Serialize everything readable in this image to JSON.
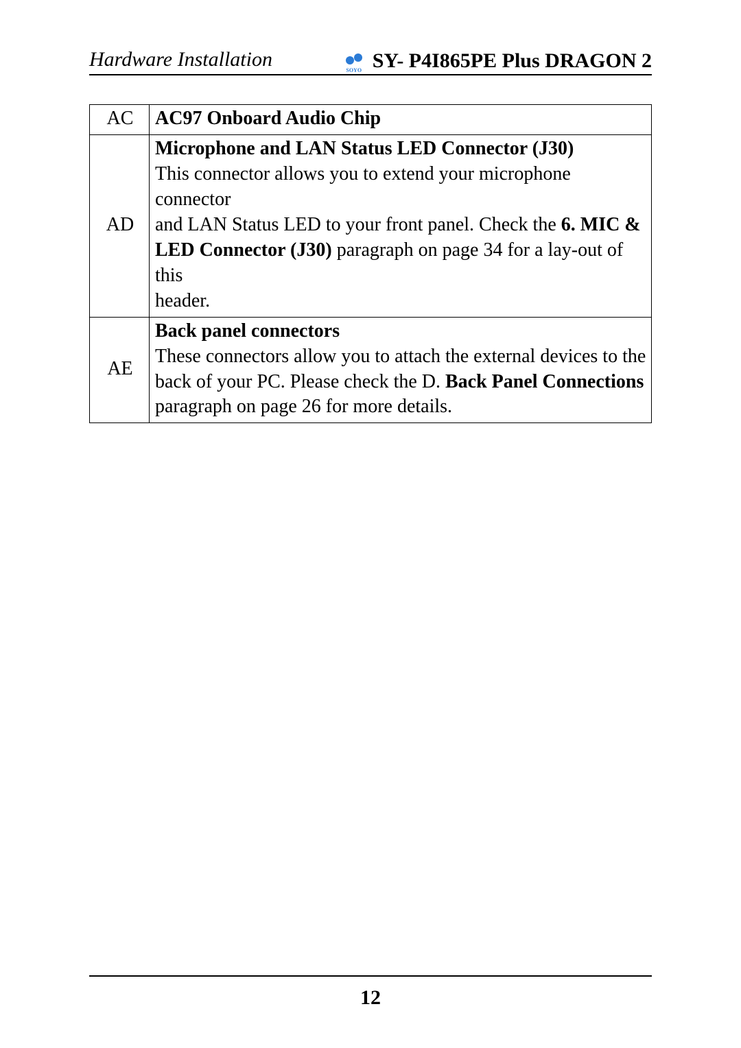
{
  "header": {
    "left": "Hardware Installation",
    "right": "SY- P4I865PE Plus DRAGON 2",
    "logo_label": "SOYO",
    "logo_color": "#2b7bd6"
  },
  "rows": [
    {
      "code": "AC",
      "lines": [
        {
          "text": "AC97 Onboard Audio Chip",
          "bold": true
        }
      ]
    },
    {
      "code": "AD",
      "lines": [
        {
          "text": "Microphone and LAN Status LED Connector (J30)",
          "bold": true
        },
        {
          "text": "This connector allows you to extend your microphone connector"
        },
        {
          "segments": [
            {
              "text": "and LAN Status LED to your front panel. Check the "
            },
            {
              "text": "6. MIC &",
              "bold": true
            }
          ]
        },
        {
          "segments": [
            {
              "text": "LED Connector (J30) ",
              "bold": true
            },
            {
              "text": "paragraph on page 34 for a lay-out of this"
            }
          ]
        },
        {
          "text": "header."
        }
      ]
    },
    {
      "code": "AE",
      "lines": [
        {
          "text": "Back panel connectors",
          "bold": true
        },
        {
          "text": "These connectors allow you to attach the external devices to the"
        },
        {
          "segments": [
            {
              "text": "back of your PC. Please check the D. "
            },
            {
              "text": "Back Panel Connections",
              "bold": true
            }
          ]
        },
        {
          "text": "paragraph on page 26 for more details."
        }
      ]
    }
  ],
  "page_number": "12"
}
